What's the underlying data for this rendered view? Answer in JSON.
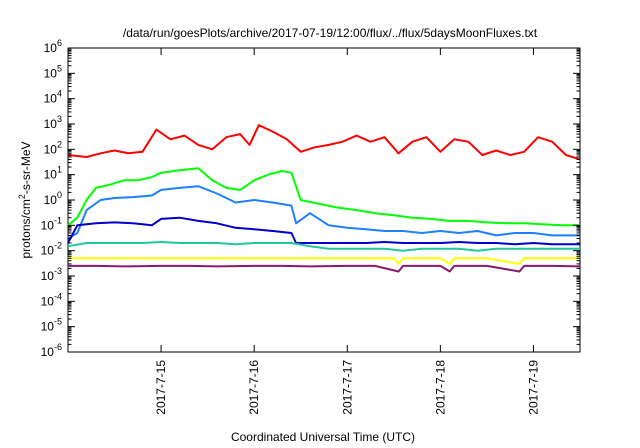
{
  "chart_data": {
    "type": "line",
    "title": "/data/run/goesPlots/archive/2017-07-19/12:00/flux/../flux/5daysMoonFluxes.txt",
    "xlabel": "Coordinated Universal Time (UTC)",
    "ylabel": {
      "parts": [
        {
          "text": "protons/cm",
          "sup": false
        },
        {
          "text": "2",
          "sup": true
        },
        {
          "text": "-s-sr-MeV",
          "sup": false
        }
      ]
    },
    "yscale": "log",
    "ylim": [
      1e-06,
      1000000.0
    ],
    "xlim": [
      14.0,
      19.5
    ],
    "x_ticks": [
      {
        "value": 15,
        "label": "2017-7-15"
      },
      {
        "value": 16,
        "label": "2017-7-16"
      },
      {
        "value": 17,
        "label": "2017-7-17"
      },
      {
        "value": 18,
        "label": "2017-7-18"
      },
      {
        "value": 19,
        "label": "2017-7-19"
      }
    ],
    "y_ticks": [
      {
        "exp": 6,
        "label": "10",
        "sup": "6"
      },
      {
        "exp": 5,
        "label": "10",
        "sup": "5"
      },
      {
        "exp": 4,
        "label": "10",
        "sup": "4"
      },
      {
        "exp": 3,
        "label": "10",
        "sup": "3"
      },
      {
        "exp": 2,
        "label": "10",
        "sup": "2"
      },
      {
        "exp": 1,
        "label": "10",
        "sup": "1"
      },
      {
        "exp": 0,
        "label": "10",
        "sup": "0"
      },
      {
        "exp": -1,
        "label": "10",
        "sup": "-1"
      },
      {
        "exp": -2,
        "label": "10",
        "sup": "-2"
      },
      {
        "exp": -3,
        "label": "10",
        "sup": "-3"
      },
      {
        "exp": -4,
        "label": "10",
        "sup": "-4"
      },
      {
        "exp": -5,
        "label": "10",
        "sup": "-5"
      },
      {
        "exp": -6,
        "label": "10",
        "sup": "-6"
      }
    ],
    "grid": false,
    "legend": "none",
    "series": [
      {
        "color": "#ff0000",
        "x": [
          14.0,
          14.2,
          14.35,
          14.5,
          14.65,
          14.8,
          14.95,
          15.1,
          15.25,
          15.4,
          15.55,
          15.7,
          15.85,
          15.95,
          16.05,
          16.2,
          16.35,
          16.5,
          16.65,
          16.8,
          16.95,
          17.1,
          17.25,
          17.4,
          17.55,
          17.7,
          17.85,
          18.0,
          18.15,
          18.3,
          18.45,
          18.6,
          18.75,
          18.9,
          19.05,
          19.2,
          19.35,
          19.5
        ],
        "y": [
          60,
          50,
          70,
          90,
          70,
          80,
          600,
          250,
          350,
          150,
          100,
          300,
          400,
          150,
          900,
          500,
          250,
          80,
          120,
          150,
          200,
          350,
          200,
          300,
          70,
          200,
          300,
          80,
          250,
          200,
          60,
          90,
          60,
          80,
          300,
          200,
          60,
          40
        ]
      },
      {
        "color": "#00ff00",
        "x": [
          14.0,
          14.1,
          14.2,
          14.3,
          14.45,
          14.6,
          14.75,
          14.9,
          15.0,
          15.2,
          15.4,
          15.55,
          15.7,
          15.85,
          16.0,
          16.15,
          16.3,
          16.4,
          16.5,
          16.7,
          16.9,
          17.1,
          17.3,
          17.5,
          17.7,
          17.9,
          18.1,
          18.3,
          18.5,
          18.7,
          18.9,
          19.1,
          19.3,
          19.5
        ],
        "y": [
          0.1,
          0.2,
          1.0,
          3.0,
          4.0,
          6.0,
          6.0,
          8.0,
          12.0,
          15.0,
          18.0,
          6.0,
          3.0,
          2.5,
          6.0,
          10.0,
          14.0,
          12.0,
          1.0,
          0.7,
          0.5,
          0.4,
          0.3,
          0.25,
          0.2,
          0.18,
          0.15,
          0.15,
          0.13,
          0.12,
          0.12,
          0.11,
          0.1,
          0.1
        ]
      },
      {
        "color": "#1e7fff",
        "x": [
          14.0,
          14.1,
          14.2,
          14.35,
          14.5,
          14.7,
          14.9,
          15.0,
          15.2,
          15.4,
          15.6,
          15.8,
          16.0,
          16.2,
          16.4,
          16.45,
          16.6,
          16.8,
          17.0,
          17.2,
          17.4,
          17.6,
          17.8,
          18.0,
          18.2,
          18.4,
          18.6,
          18.8,
          19.0,
          19.2,
          19.5
        ],
        "y": [
          0.03,
          0.05,
          0.4,
          1.0,
          1.2,
          1.3,
          1.5,
          2.5,
          3.0,
          3.5,
          1.8,
          0.8,
          1.0,
          0.8,
          0.6,
          0.12,
          0.3,
          0.1,
          0.08,
          0.07,
          0.06,
          0.06,
          0.05,
          0.06,
          0.05,
          0.06,
          0.04,
          0.05,
          0.05,
          0.04,
          0.04
        ]
      },
      {
        "color": "#0000cc",
        "x": [
          14.0,
          14.1,
          14.3,
          14.5,
          14.7,
          14.9,
          15.0,
          15.2,
          15.4,
          15.6,
          15.8,
          16.0,
          16.2,
          16.4,
          16.45,
          16.6,
          16.8,
          17.0,
          17.2,
          17.4,
          17.6,
          17.8,
          18.0,
          18.2,
          18.4,
          18.6,
          18.8,
          19.0,
          19.2,
          19.5
        ],
        "y": [
          0.02,
          0.1,
          0.12,
          0.13,
          0.12,
          0.1,
          0.18,
          0.2,
          0.15,
          0.12,
          0.08,
          0.07,
          0.06,
          0.05,
          0.02,
          0.02,
          0.02,
          0.02,
          0.02,
          0.022,
          0.02,
          0.02,
          0.02,
          0.022,
          0.02,
          0.02,
          0.018,
          0.02,
          0.018,
          0.018
        ]
      },
      {
        "color": "#20c8a0",
        "x": [
          14.0,
          14.2,
          14.4,
          14.6,
          14.8,
          15.0,
          15.2,
          15.4,
          15.6,
          15.8,
          16.0,
          16.2,
          16.4,
          16.6,
          16.8,
          17.0,
          17.2,
          17.4,
          17.6,
          17.8,
          18.0,
          18.2,
          18.4,
          18.6,
          18.8,
          19.0,
          19.2,
          19.5
        ],
        "y": [
          0.015,
          0.02,
          0.02,
          0.02,
          0.02,
          0.022,
          0.02,
          0.02,
          0.02,
          0.018,
          0.02,
          0.02,
          0.02,
          0.015,
          0.012,
          0.012,
          0.012,
          0.012,
          0.01,
          0.012,
          0.012,
          0.012,
          0.01,
          0.012,
          0.012,
          0.012,
          0.012,
          0.012
        ]
      },
      {
        "color": "#ffff00",
        "x": [
          14.0,
          14.5,
          15.0,
          15.5,
          16.0,
          16.5,
          17.0,
          17.5,
          17.55,
          17.6,
          18.0,
          18.1,
          18.15,
          18.5,
          18.85,
          18.9,
          19.0,
          19.5
        ],
        "y": [
          0.005,
          0.005,
          0.005,
          0.005,
          0.005,
          0.005,
          0.005,
          0.005,
          0.003,
          0.005,
          0.005,
          0.003,
          0.005,
          0.005,
          0.003,
          0.005,
          0.005,
          0.005
        ]
      },
      {
        "color": "#8b1a6e",
        "x": [
          14.0,
          14.3,
          14.6,
          15.0,
          15.3,
          15.6,
          16.0,
          16.3,
          16.6,
          17.0,
          17.3,
          17.55,
          17.6,
          18.0,
          18.1,
          18.15,
          18.5,
          18.85,
          18.9,
          19.2,
          19.5
        ],
        "y": [
          0.0025,
          0.0025,
          0.0024,
          0.0025,
          0.0025,
          0.0024,
          0.0025,
          0.0025,
          0.0024,
          0.0025,
          0.0025,
          0.0015,
          0.0025,
          0.0025,
          0.0015,
          0.0025,
          0.0025,
          0.0015,
          0.0025,
          0.0025,
          0.0024
        ]
      }
    ]
  }
}
